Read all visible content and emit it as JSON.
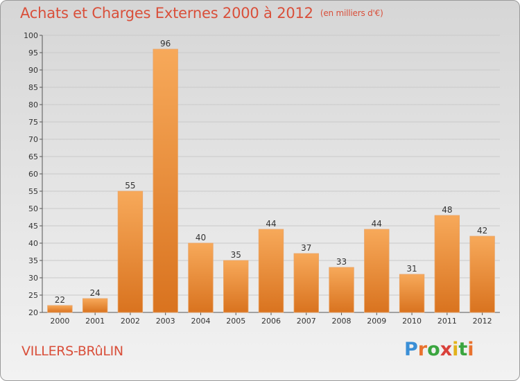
{
  "header": {
    "title": "Achats et Charges Externes 2000 à 2012",
    "unit": "(en milliers d'€)"
  },
  "footer": {
    "commune": "VILLERS-BRûLIN",
    "logo_text": "Proxiti"
  },
  "colors": {
    "bar_light": "#f7a95a",
    "bar_dark": "#d9731f",
    "title": "#d94f3a"
  },
  "chart_data": {
    "type": "bar",
    "title": "Achats et Charges Externes 2000 à 2012",
    "subtitle": "(en milliers d'€)",
    "xlabel": "",
    "ylabel": "",
    "categories": [
      "2000",
      "2001",
      "2002",
      "2003",
      "2004",
      "2005",
      "2006",
      "2007",
      "2008",
      "2009",
      "2010",
      "2011",
      "2012"
    ],
    "values": [
      22,
      24,
      55,
      96,
      40,
      35,
      44,
      37,
      33,
      44,
      31,
      48,
      42
    ],
    "ylim": [
      20,
      100
    ],
    "yticks": [
      20,
      25,
      30,
      35,
      40,
      45,
      50,
      55,
      60,
      65,
      70,
      75,
      80,
      85,
      90,
      95,
      100
    ],
    "grid": true
  }
}
